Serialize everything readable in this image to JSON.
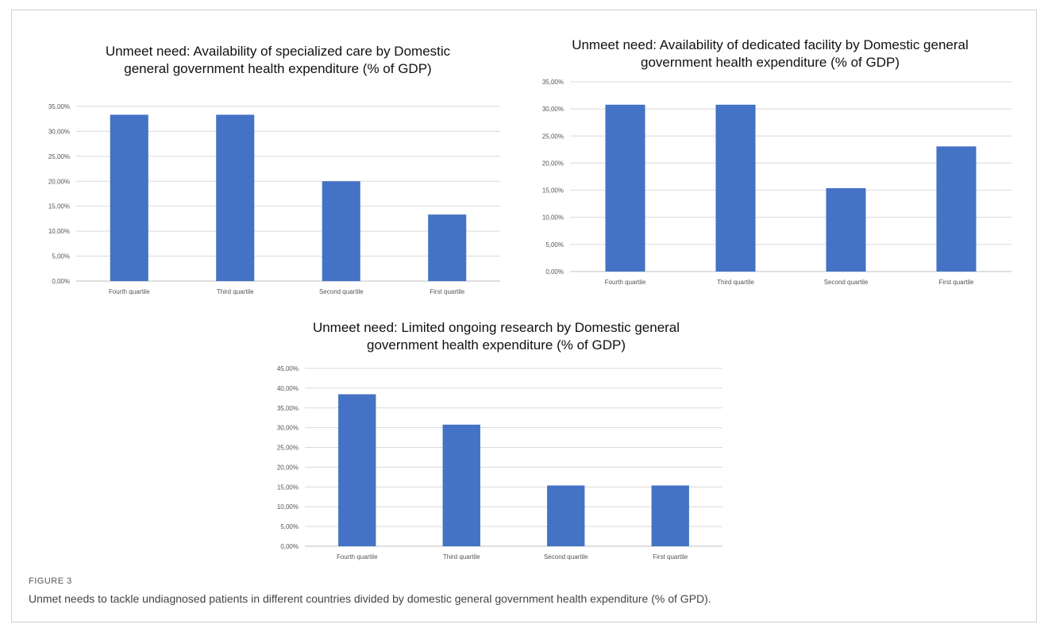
{
  "figure": {
    "label": "FIGURE 3",
    "caption": "Unmet needs to tackle undiagnosed patients in different countries divided by domestic general government health expenditure (% of GPD)."
  },
  "chart_data": [
    {
      "type": "bar",
      "title": "Unmeet need: Availability of specialized care by  Domestic\ngeneral government health expenditure (% of GDP)",
      "categories": [
        "Fourth quartile",
        "Third quartile",
        "Second quartile",
        "First quartile"
      ],
      "values": [
        33.33,
        33.33,
        20.0,
        13.33
      ],
      "y_ticks": [
        "0,00%",
        "5,00%",
        "10,00%",
        "15,00%",
        "20,00%",
        "25,00%",
        "30,00%",
        "35,00%"
      ],
      "ylim": [
        0,
        35
      ],
      "grid": true,
      "bar_color": "#4472C4"
    },
    {
      "type": "bar",
      "title": "Unmeet need: Availability of dedicated facility by Domestic general\ngovernment health expenditure (% of GDP)",
      "categories": [
        "Fourth quartile",
        "Third quartile",
        "Second quartile",
        "First quartile"
      ],
      "values": [
        30.77,
        30.77,
        15.38,
        23.08
      ],
      "y_ticks": [
        "0,00%",
        "5,00%",
        "10,00%",
        "15,00%",
        "20,00%",
        "25,00%",
        "30,00%",
        "35,00%"
      ],
      "ylim": [
        0,
        35
      ],
      "grid": true,
      "bar_color": "#4472C4"
    },
    {
      "type": "bar",
      "title": "Unmeet need: Limited ongoing research  by Domestic general\ngovernment health expenditure (% of GDP)",
      "categories": [
        "Fourth quartile",
        "Third quartile",
        "Second quartile",
        "First quartile"
      ],
      "values": [
        38.46,
        30.77,
        15.38,
        15.38
      ],
      "y_ticks": [
        "0,00%",
        "5,00%",
        "10,00%",
        "15,00%",
        "20,00%",
        "25,00%",
        "30,00%",
        "35,00%",
        "40,00%",
        "45,00%"
      ],
      "ylim": [
        0,
        45
      ],
      "grid": true,
      "bar_color": "#4472C4"
    }
  ]
}
